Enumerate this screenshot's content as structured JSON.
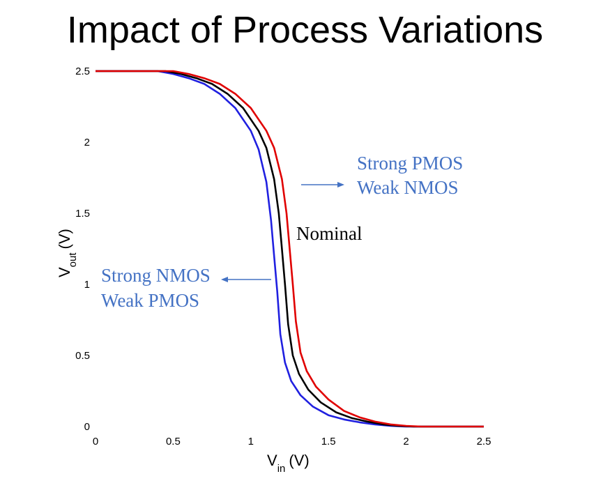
{
  "slide": {
    "title": "Impact of Process Variations"
  },
  "chart_data": {
    "type": "line",
    "xlabel_main": "V",
    "xlabel_sub": "in",
    "xlabel_unit": "(V)",
    "ylabel_main": "V",
    "ylabel_sub": "out",
    "ylabel_unit": "(V)",
    "xlim": [
      0,
      2.5
    ],
    "ylim": [
      0,
      2.5
    ],
    "x_ticks": [
      "0",
      "0.5",
      "1",
      "1.5",
      "2",
      "2.5"
    ],
    "y_ticks": [
      "0",
      "0.5",
      "1",
      "1.5",
      "2",
      "2.5"
    ],
    "grid": false,
    "series": [
      {
        "color": "#2020e0",
        "points": [
          [
            0,
            2.5
          ],
          [
            0.4,
            2.5
          ],
          [
            0.5,
            2.48
          ],
          [
            0.6,
            2.45
          ],
          [
            0.7,
            2.41
          ],
          [
            0.8,
            2.34
          ],
          [
            0.9,
            2.24
          ],
          [
            1.0,
            2.08
          ],
          [
            1.05,
            1.95
          ],
          [
            1.1,
            1.72
          ],
          [
            1.13,
            1.45
          ],
          [
            1.15,
            1.2
          ],
          [
            1.17,
            0.95
          ],
          [
            1.19,
            0.65
          ],
          [
            1.22,
            0.45
          ],
          [
            1.26,
            0.32
          ],
          [
            1.32,
            0.22
          ],
          [
            1.4,
            0.14
          ],
          [
            1.5,
            0.08
          ],
          [
            1.6,
            0.05
          ],
          [
            1.7,
            0.03
          ],
          [
            1.8,
            0.015
          ],
          [
            1.9,
            0.005
          ],
          [
            2.0,
            0
          ],
          [
            2.5,
            0
          ]
        ]
      },
      {
        "color": "#000000",
        "points": [
          [
            0,
            2.5
          ],
          [
            0.45,
            2.5
          ],
          [
            0.55,
            2.48
          ],
          [
            0.65,
            2.45
          ],
          [
            0.75,
            2.41
          ],
          [
            0.85,
            2.34
          ],
          [
            0.95,
            2.24
          ],
          [
            1.05,
            2.08
          ],
          [
            1.1,
            1.96
          ],
          [
            1.15,
            1.74
          ],
          [
            1.18,
            1.5
          ],
          [
            1.2,
            1.25
          ],
          [
            1.22,
            1.0
          ],
          [
            1.24,
            0.72
          ],
          [
            1.27,
            0.5
          ],
          [
            1.31,
            0.37
          ],
          [
            1.37,
            0.26
          ],
          [
            1.45,
            0.17
          ],
          [
            1.55,
            0.1
          ],
          [
            1.65,
            0.06
          ],
          [
            1.75,
            0.035
          ],
          [
            1.85,
            0.015
          ],
          [
            1.95,
            0.005
          ],
          [
            2.05,
            0
          ],
          [
            2.5,
            0
          ]
        ]
      },
      {
        "color": "#e00000",
        "points": [
          [
            0,
            2.5
          ],
          [
            0.5,
            2.5
          ],
          [
            0.6,
            2.48
          ],
          [
            0.7,
            2.45
          ],
          [
            0.8,
            2.41
          ],
          [
            0.9,
            2.34
          ],
          [
            1.0,
            2.24
          ],
          [
            1.1,
            2.08
          ],
          [
            1.15,
            1.96
          ],
          [
            1.2,
            1.74
          ],
          [
            1.23,
            1.5
          ],
          [
            1.25,
            1.25
          ],
          [
            1.27,
            1.0
          ],
          [
            1.29,
            0.74
          ],
          [
            1.32,
            0.52
          ],
          [
            1.36,
            0.39
          ],
          [
            1.42,
            0.28
          ],
          [
            1.5,
            0.19
          ],
          [
            1.6,
            0.11
          ],
          [
            1.7,
            0.065
          ],
          [
            1.8,
            0.035
          ],
          [
            1.9,
            0.015
          ],
          [
            2.0,
            0.005
          ],
          [
            2.1,
            0
          ],
          [
            2.5,
            0
          ]
        ]
      }
    ],
    "annotations": {
      "strong_pmos_line1": "Strong PMOS",
      "strong_pmos_line2": "Weak NMOS",
      "nominal": "Nominal",
      "strong_nmos_line1": "Strong NMOS",
      "strong_nmos_line2": "Weak PMOS",
      "annotation_color": "#4472c4",
      "arrow_color": "#4472c4"
    }
  }
}
